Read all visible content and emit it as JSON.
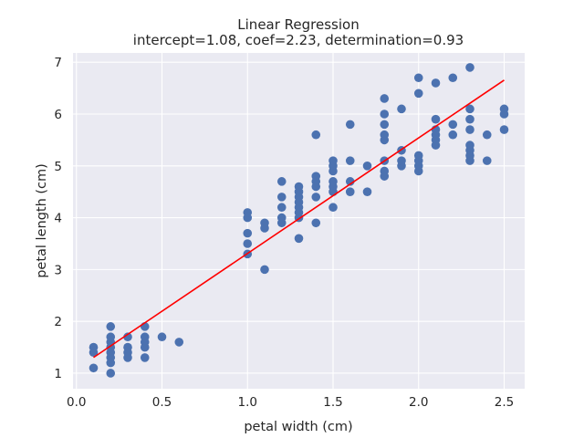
{
  "chart_data": {
    "type": "scatter",
    "title": "Linear Regression",
    "subtitle": "intercept=1.08, coef=2.23, determination=0.93",
    "xlabel": "petal width (cm)",
    "ylabel": "petal length (cm)",
    "xlim": [
      -0.02,
      2.62
    ],
    "ylim": [
      0.7,
      7.18
    ],
    "xticks": [
      0.0,
      0.5,
      1.0,
      1.5,
      2.0,
      2.5
    ],
    "xtick_labels": [
      "0.0",
      "0.5",
      "1.0",
      "1.5",
      "2.0",
      "2.5"
    ],
    "yticks": [
      1,
      2,
      3,
      4,
      5,
      6,
      7
    ],
    "ytick_labels": [
      "1",
      "2",
      "3",
      "4",
      "5",
      "6",
      "7"
    ],
    "grid": true,
    "background_color": "#eaeaf2",
    "grid_color": "#ffffff",
    "point_color": "#4c72b0",
    "line_color": "#ff0000",
    "points": [
      [
        0.1,
        1.1
      ],
      [
        0.1,
        1.4
      ],
      [
        0.1,
        1.5
      ],
      [
        0.2,
        1.0
      ],
      [
        0.2,
        1.2
      ],
      [
        0.2,
        1.3
      ],
      [
        0.2,
        1.4
      ],
      [
        0.2,
        1.5
      ],
      [
        0.2,
        1.6
      ],
      [
        0.2,
        1.7
      ],
      [
        0.2,
        1.9
      ],
      [
        0.3,
        1.3
      ],
      [
        0.3,
        1.4
      ],
      [
        0.3,
        1.5
      ],
      [
        0.3,
        1.7
      ],
      [
        0.4,
        1.3
      ],
      [
        0.4,
        1.5
      ],
      [
        0.4,
        1.6
      ],
      [
        0.4,
        1.7
      ],
      [
        0.4,
        1.9
      ],
      [
        0.5,
        1.7
      ],
      [
        0.6,
        1.6
      ],
      [
        1.0,
        3.3
      ],
      [
        1.0,
        3.5
      ],
      [
        1.0,
        3.7
      ],
      [
        1.0,
        4.0
      ],
      [
        1.0,
        4.1
      ],
      [
        1.1,
        3.0
      ],
      [
        1.1,
        3.8
      ],
      [
        1.1,
        3.9
      ],
      [
        1.2,
        3.9
      ],
      [
        1.2,
        4.0
      ],
      [
        1.2,
        4.2
      ],
      [
        1.2,
        4.4
      ],
      [
        1.2,
        4.7
      ],
      [
        1.3,
        3.6
      ],
      [
        1.3,
        4.0
      ],
      [
        1.3,
        4.1
      ],
      [
        1.3,
        4.2
      ],
      [
        1.3,
        4.3
      ],
      [
        1.3,
        4.4
      ],
      [
        1.3,
        4.5
      ],
      [
        1.3,
        4.6
      ],
      [
        1.4,
        3.9
      ],
      [
        1.4,
        4.4
      ],
      [
        1.4,
        4.6
      ],
      [
        1.4,
        4.7
      ],
      [
        1.4,
        4.8
      ],
      [
        1.4,
        5.6
      ],
      [
        1.5,
        4.2
      ],
      [
        1.5,
        4.5
      ],
      [
        1.5,
        4.6
      ],
      [
        1.5,
        4.7
      ],
      [
        1.5,
        4.9
      ],
      [
        1.5,
        5.0
      ],
      [
        1.5,
        5.1
      ],
      [
        1.6,
        4.5
      ],
      [
        1.6,
        4.7
      ],
      [
        1.6,
        5.1
      ],
      [
        1.6,
        5.8
      ],
      [
        1.7,
        4.5
      ],
      [
        1.7,
        5.0
      ],
      [
        1.8,
        4.8
      ],
      [
        1.8,
        4.9
      ],
      [
        1.8,
        5.1
      ],
      [
        1.8,
        5.5
      ],
      [
        1.8,
        5.6
      ],
      [
        1.8,
        5.8
      ],
      [
        1.8,
        6.0
      ],
      [
        1.8,
        6.3
      ],
      [
        1.9,
        5.0
      ],
      [
        1.9,
        5.1
      ],
      [
        1.9,
        5.3
      ],
      [
        1.9,
        6.1
      ],
      [
        2.0,
        4.9
      ],
      [
        2.0,
        5.0
      ],
      [
        2.0,
        5.1
      ],
      [
        2.0,
        5.2
      ],
      [
        2.0,
        6.4
      ],
      [
        2.0,
        6.7
      ],
      [
        2.1,
        5.4
      ],
      [
        2.1,
        5.5
      ],
      [
        2.1,
        5.6
      ],
      [
        2.1,
        5.7
      ],
      [
        2.1,
        5.9
      ],
      [
        2.1,
        6.6
      ],
      [
        2.2,
        5.6
      ],
      [
        2.2,
        5.8
      ],
      [
        2.2,
        6.7
      ],
      [
        2.3,
        5.1
      ],
      [
        2.3,
        5.2
      ],
      [
        2.3,
        5.3
      ],
      [
        2.3,
        5.4
      ],
      [
        2.3,
        5.7
      ],
      [
        2.3,
        5.9
      ],
      [
        2.3,
        6.1
      ],
      [
        2.3,
        6.9
      ],
      [
        2.4,
        5.1
      ],
      [
        2.4,
        5.6
      ],
      [
        2.5,
        5.7
      ],
      [
        2.5,
        6.0
      ],
      [
        2.5,
        6.1
      ]
    ],
    "regression_line": {
      "intercept": 1.08,
      "coef": 2.23,
      "x_range": [
        0.1,
        2.5
      ]
    }
  }
}
